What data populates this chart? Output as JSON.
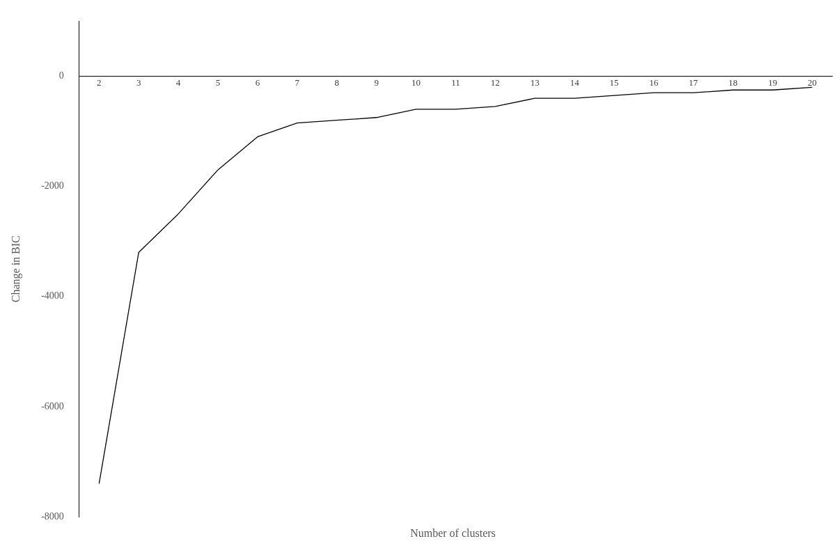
{
  "chart_data": {
    "type": "line",
    "xlabel": "Number of clusters",
    "ylabel": "Change in BIC",
    "categories": [
      "2",
      "3",
      "4",
      "5",
      "6",
      "7",
      "8",
      "9",
      "10",
      "11",
      "12",
      "13",
      "14",
      "15",
      "16",
      "17",
      "18",
      "19",
      "20"
    ],
    "series": [
      {
        "color": "#000000",
        "values": [
          -7400,
          -3200,
          -2500,
          -1700,
          -1100,
          -850,
          -800,
          -750,
          -600,
          -600,
          -550,
          -400,
          -400,
          -350,
          -300,
          -300,
          -250,
          -250,
          -200
        ]
      }
    ],
    "ylim": [
      -8000,
      1000
    ],
    "yticks": [
      -8000,
      -6000,
      -4000,
      -2000,
      0
    ],
    "grid": false,
    "legend": false,
    "marker": "none",
    "line_style": "solid"
  }
}
